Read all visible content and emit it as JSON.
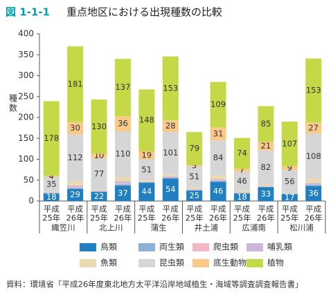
{
  "chart_data": {
    "type": "stacked-bar",
    "figure_label": "図 1-1-1",
    "title": "重点地区における出現種数の比較",
    "y_label": "種数",
    "source": "資料：環境省「平成26年度東北地方太平洋沿岸地域植生・海域等調査調査報告書」",
    "categories": [
      [
        "平成",
        "25年"
      ],
      [
        "平成",
        "26年"
      ],
      [
        "平成",
        "25年"
      ],
      [
        "平成",
        "26年"
      ],
      [
        "平成",
        "25年"
      ],
      [
        "平成",
        "26年"
      ],
      [
        "平成",
        "25年"
      ],
      [
        "平成",
        "26年"
      ],
      [
        "平成",
        "25年"
      ],
      [
        "平成",
        "26年"
      ],
      [
        "平成",
        "25年"
      ],
      [
        "平成",
        "26年"
      ]
    ],
    "groups": [
      "織笠川",
      "北上川",
      "蒲生",
      "井土浦",
      "広浦南",
      "松川浦"
    ],
    "ylim": [
      0,
      400
    ],
    "yticks": [
      0,
      50,
      100,
      150,
      200,
      250,
      300,
      350,
      400
    ],
    "series": [
      {
        "name": "鳥類",
        "color": "#1f7fc1",
        "show_labels": true,
        "label_color": "#ffffff",
        "values": [
          18,
          29,
          22,
          37,
          44,
          54,
          25,
          46,
          18,
          33,
          17,
          36
        ]
      },
      {
        "name": "両生類",
        "color": "#8fb0d8",
        "values": [
          1,
          2,
          1,
          3,
          1,
          2,
          1,
          2,
          1,
          1,
          0,
          3
        ]
      },
      {
        "name": "爬虫類",
        "color": "#f2b8c6",
        "values": [
          0,
          2,
          0,
          2,
          0,
          1,
          0,
          1,
          0,
          0,
          0,
          1
        ]
      },
      {
        "name": "哺乳類",
        "color": "#c9b8dc",
        "values": [
          1,
          4,
          1,
          5,
          1,
          2,
          2,
          3,
          1,
          1,
          0,
          3
        ]
      },
      {
        "name": "魚類",
        "color": "#ecd9b0",
        "values": [
          2,
          10,
          2,
          10,
          3,
          5,
          4,
          9,
          4,
          4,
          1,
          10
        ]
      },
      {
        "name": "昆虫類",
        "color": "#d6d6d6",
        "show_labels": true,
        "label_color": "#333333",
        "values": [
          35,
          112,
          77,
          110,
          51,
          101,
          51,
          84,
          46,
          82,
          56,
          108
        ]
      },
      {
        "name": "底生動物",
        "color": "#f9c98a",
        "show_labels": true,
        "label_color": "#333333",
        "values": [
          4,
          30,
          10,
          36,
          19,
          28,
          3,
          31,
          7,
          21,
          9,
          27
        ]
      },
      {
        "name": "植物",
        "color": "#c4d848",
        "show_labels": true,
        "label_color": "#333333",
        "values": [
          178,
          181,
          130,
          137,
          148,
          153,
          79,
          109,
          74,
          85,
          107,
          153
        ]
      }
    ]
  }
}
